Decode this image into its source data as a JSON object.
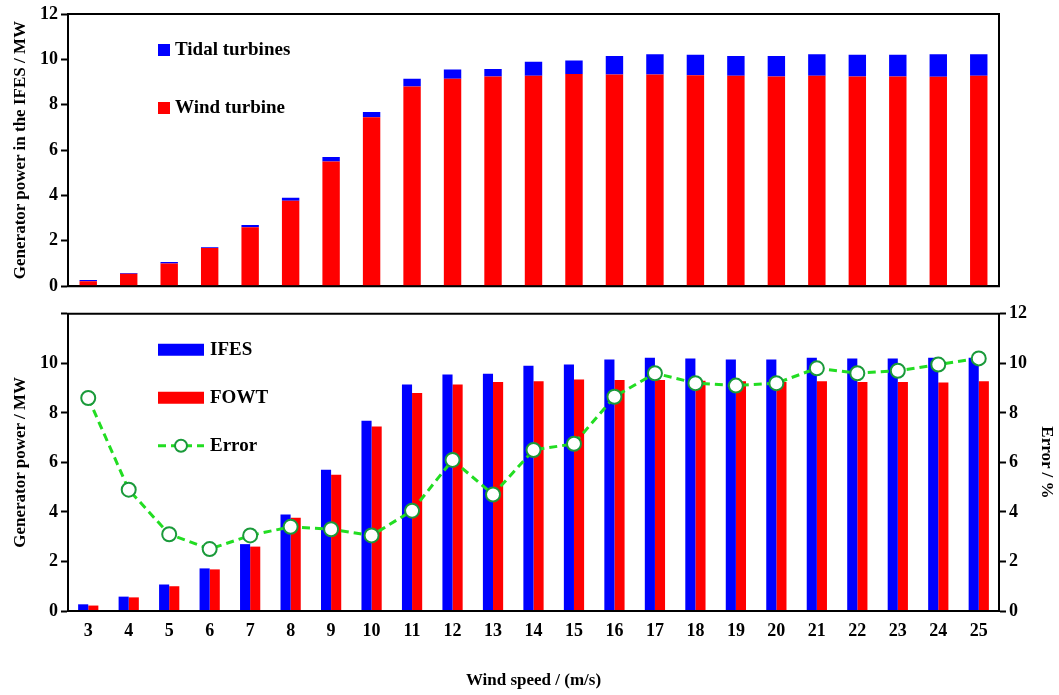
{
  "chart_data": [
    {
      "type": "bar",
      "stacked": true,
      "ylabel": "Generator power in the IFES / MW",
      "categories": [
        "3",
        "4",
        "5",
        "6",
        "7",
        "8",
        "9",
        "10",
        "11",
        "12",
        "13",
        "14",
        "15",
        "16",
        "17",
        "18",
        "19",
        "20",
        "21",
        "22",
        "23",
        "24",
        "25"
      ],
      "series": [
        {
          "name": "Wind turbine",
          "color": "#ff0000",
          "values": [
            0.22,
            0.55,
            1.0,
            1.68,
            2.6,
            3.77,
            5.5,
            7.45,
            8.8,
            9.15,
            9.25,
            9.28,
            9.35,
            9.33,
            9.33,
            9.3,
            9.28,
            9.25,
            9.28,
            9.25,
            9.25,
            9.23,
            9.28
          ]
        },
        {
          "name": "Tidal turbines",
          "color": "#0000ff",
          "values": [
            0.05,
            0.03,
            0.07,
            0.04,
            0.1,
            0.13,
            0.2,
            0.23,
            0.35,
            0.4,
            0.33,
            0.62,
            0.6,
            0.82,
            0.9,
            0.9,
            0.87,
            0.9,
            0.95,
            0.95,
            0.95,
            1.0,
            0.95
          ]
        }
      ],
      "ylim": [
        0,
        12
      ],
      "yticks": [
        0,
        2,
        4,
        6,
        8,
        10,
        12
      ],
      "tick_labels": "y",
      "legend": "top left",
      "grid": false
    },
    {
      "type": "bar",
      "ylabel": "Generator power / MW",
      "xlabel": "Wind speed / (m/s)",
      "y2label": "Error / %",
      "categories": [
        "3",
        "4",
        "5",
        "6",
        "7",
        "8",
        "9",
        "10",
        "11",
        "12",
        "13",
        "14",
        "15",
        "16",
        "17",
        "18",
        "19",
        "20",
        "21",
        "22",
        "23",
        "24",
        "25"
      ],
      "series": [
        {
          "name": "IFES",
          "color": "#0000ff",
          "values": [
            0.27,
            0.58,
            1.07,
            1.72,
            2.7,
            3.9,
            5.7,
            7.68,
            9.15,
            9.55,
            9.58,
            9.9,
            9.95,
            10.15,
            10.23,
            10.2,
            10.15,
            10.15,
            10.23,
            10.2,
            10.2,
            10.23,
            10.23
          ]
        },
        {
          "name": "FOWT",
          "color": "#ff0000",
          "values": [
            0.22,
            0.55,
            1.0,
            1.68,
            2.6,
            3.77,
            5.5,
            7.45,
            8.8,
            9.15,
            9.25,
            9.28,
            9.35,
            9.33,
            9.33,
            9.3,
            9.28,
            9.25,
            9.28,
            9.25,
            9.25,
            9.23,
            9.28
          ]
        },
        {
          "name": "Error",
          "type": "line",
          "axis": "y2",
          "color": "#22dd22",
          "marker": "circle",
          "line_style": "dashed",
          "values": [
            8.6,
            4.9,
            3.1,
            2.5,
            3.05,
            3.4,
            3.3,
            3.05,
            4.05,
            6.1,
            4.7,
            6.5,
            6.75,
            8.65,
            9.6,
            9.2,
            9.1,
            9.2,
            9.8,
            9.6,
            9.7,
            9.95,
            10.2
          ]
        }
      ],
      "ylim": [
        0,
        12
      ],
      "yticks": [
        0,
        2,
        4,
        6,
        8,
        10,
        {
          "value": 12,
          "label": null
        }
      ],
      "y2lim": [
        0,
        12
      ],
      "y2ticks": [
        0,
        2,
        4,
        6,
        8,
        10,
        12
      ],
      "legend": "top left",
      "grid": false
    }
  ]
}
